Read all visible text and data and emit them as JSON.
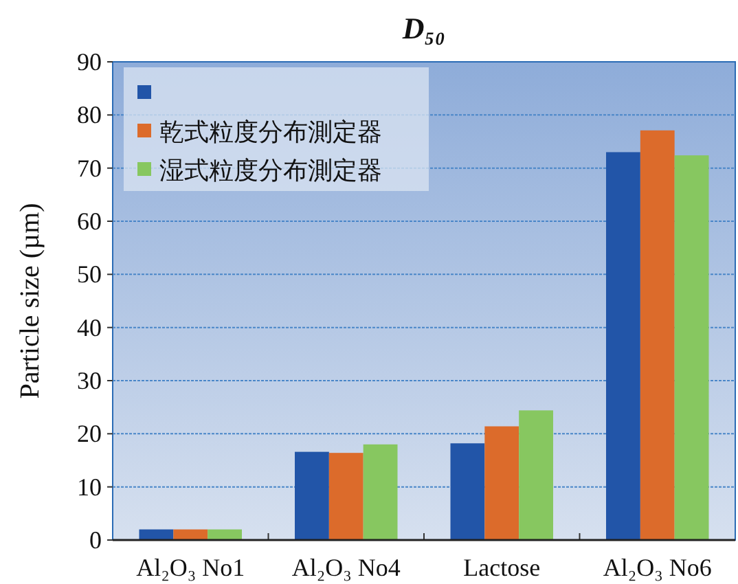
{
  "chart_data": {
    "type": "bar",
    "title": "D₅₀",
    "ylabel": "Particle size (µm)",
    "categories": [
      "Al₂O₃ No1",
      "Al₂O₃ No4",
      "Lactose",
      "Al₂O₃ No6"
    ],
    "series": [
      {
        "color": "#2255a8",
        "values": [
          2.0,
          16.6,
          18.2,
          73.0
        ]
      },
      {
        "name": "乾式粒度分布測定器",
        "color": "#dc6b2b",
        "values": [
          2.0,
          16.4,
          21.4,
          77.1
        ]
      },
      {
        "name": "湿式粒度分布測定器",
        "color": "#87c760",
        "values": [
          2.0,
          18.0,
          24.4,
          72.4
        ]
      }
    ],
    "ylim": [
      0,
      90
    ],
    "yticks": [
      0,
      10,
      20,
      30,
      40,
      50,
      60,
      70,
      80,
      90
    ],
    "grid": "y",
    "legend": "top left"
  }
}
